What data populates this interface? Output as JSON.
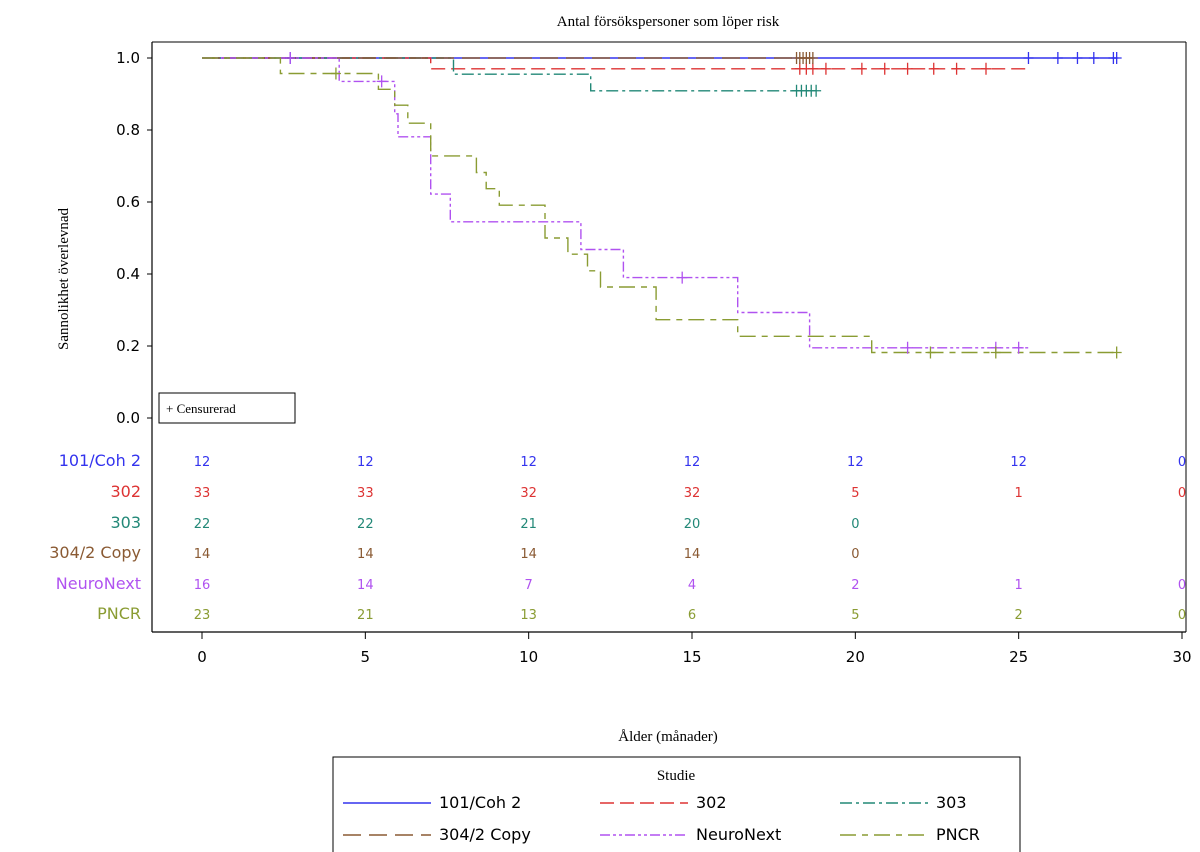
{
  "chart_data": {
    "type": "line",
    "title": "Antal försökspersoner som löper risk",
    "xlabel": "Ålder (månader)",
    "ylabel": "Sannolikhet överlevnad",
    "xlim": [
      0,
      30
    ],
    "ylim": [
      0,
      1.0
    ],
    "xticks": [
      "0",
      "5",
      "10",
      "15",
      "20",
      "25",
      "30"
    ],
    "yticks": [
      "0.0",
      "0.2",
      "0.4",
      "0.6",
      "0.8",
      "1.0"
    ],
    "censor_label": "+ Censurerad",
    "legend_title": "Studie",
    "legend_position": "bottom",
    "series": [
      {
        "name": "101/Coh 2",
        "color": "#3333ee",
        "dash": "solid",
        "steps": [
          [
            0,
            1.0
          ],
          [
            28,
            1.0
          ]
        ],
        "censored": [
          [
            2.7,
            1.0
          ],
          [
            25.3,
            1.0
          ],
          [
            26.2,
            1.0
          ],
          [
            26.8,
            1.0
          ],
          [
            27.3,
            1.0
          ],
          [
            27.9,
            1.0
          ],
          [
            28.0,
            1.0
          ]
        ],
        "at_risk": [
          "12",
          "12",
          "12",
          "12",
          "12",
          "12",
          "0"
        ]
      },
      {
        "name": "302",
        "color": "#dd3333",
        "dash": "long",
        "steps": [
          [
            0,
            1.0
          ],
          [
            7.0,
            0.97
          ],
          [
            25.3,
            0.97
          ]
        ],
        "censored": [
          [
            18.3,
            0.97
          ],
          [
            18.5,
            0.97
          ],
          [
            18.7,
            0.97
          ],
          [
            19.1,
            0.97
          ],
          [
            20.2,
            0.97
          ],
          [
            20.9,
            0.97
          ],
          [
            21.6,
            0.97
          ],
          [
            22.4,
            0.97
          ],
          [
            23.1,
            0.97
          ],
          [
            24.0,
            0.97
          ]
        ],
        "at_risk": [
          "33",
          "33",
          "32",
          "32",
          "5",
          "1",
          "0"
        ]
      },
      {
        "name": "303",
        "color": "#228877",
        "dash": "dashdot",
        "steps": [
          [
            0,
            1.0
          ],
          [
            7.7,
            0.955
          ],
          [
            11.9,
            0.909
          ],
          [
            18.7,
            0.909
          ]
        ],
        "censored": [
          [
            18.2,
            0.909
          ],
          [
            18.35,
            0.909
          ],
          [
            18.5,
            0.909
          ],
          [
            18.65,
            0.909
          ],
          [
            18.8,
            0.909
          ]
        ],
        "at_risk": [
          "22",
          "22",
          "21",
          "20",
          "0",
          "",
          ""
        ]
      },
      {
        "name": "304/2 Copy",
        "color": "#8a5a33",
        "dash": "longlong",
        "steps": [
          [
            0,
            1.0
          ],
          [
            18.7,
            1.0
          ]
        ],
        "censored": [
          [
            18.2,
            1.0
          ],
          [
            18.3,
            1.0
          ],
          [
            18.4,
            1.0
          ],
          [
            18.5,
            1.0
          ],
          [
            18.6,
            1.0
          ],
          [
            18.7,
            1.0
          ]
        ],
        "at_risk": [
          "14",
          "14",
          "14",
          "14",
          "0",
          "",
          ""
        ]
      },
      {
        "name": "NeuroNext",
        "color": "#b052f0",
        "dash": "dashdotdot",
        "steps": [
          [
            0,
            1.0
          ],
          [
            4.2,
            0.935
          ],
          [
            5.9,
            0.845
          ],
          [
            6.0,
            0.781
          ],
          [
            7.0,
            0.622
          ],
          [
            7.6,
            0.545
          ],
          [
            11.6,
            0.468
          ],
          [
            12.9,
            0.39
          ],
          [
            16.4,
            0.293
          ],
          [
            18.6,
            0.195
          ],
          [
            25.3,
            0.195
          ]
        ],
        "censored": [
          [
            2.7,
            1.0
          ],
          [
            5.5,
            0.935
          ],
          [
            14.7,
            0.39
          ],
          [
            21.6,
            0.195
          ],
          [
            24.3,
            0.195
          ],
          [
            25.0,
            0.195
          ]
        ],
        "at_risk": [
          "16",
          "14",
          "7",
          "4",
          "2",
          "1",
          "0"
        ]
      },
      {
        "name": "PNCR",
        "color": "#8a9c33",
        "dash": "longshort",
        "steps": [
          [
            0,
            1.0
          ],
          [
            2.4,
            0.957
          ],
          [
            5.4,
            0.913
          ],
          [
            5.9,
            0.869
          ],
          [
            6.3,
            0.819
          ],
          [
            7.0,
            0.728
          ],
          [
            8.4,
            0.682
          ],
          [
            8.7,
            0.637
          ],
          [
            9.1,
            0.591
          ],
          [
            10.5,
            0.5
          ],
          [
            11.2,
            0.455
          ],
          [
            11.8,
            0.409
          ],
          [
            12.2,
            0.364
          ],
          [
            13.9,
            0.273
          ],
          [
            16.4,
            0.227
          ],
          [
            20.5,
            0.182
          ],
          [
            28.0,
            0.182
          ]
        ],
        "censored": [
          [
            4.1,
            0.957
          ],
          [
            22.3,
            0.182
          ],
          [
            24.3,
            0.182
          ],
          [
            28.0,
            0.182
          ]
        ],
        "at_risk": [
          "23",
          "21",
          "13",
          "6",
          "5",
          "2",
          "0"
        ]
      }
    ]
  }
}
